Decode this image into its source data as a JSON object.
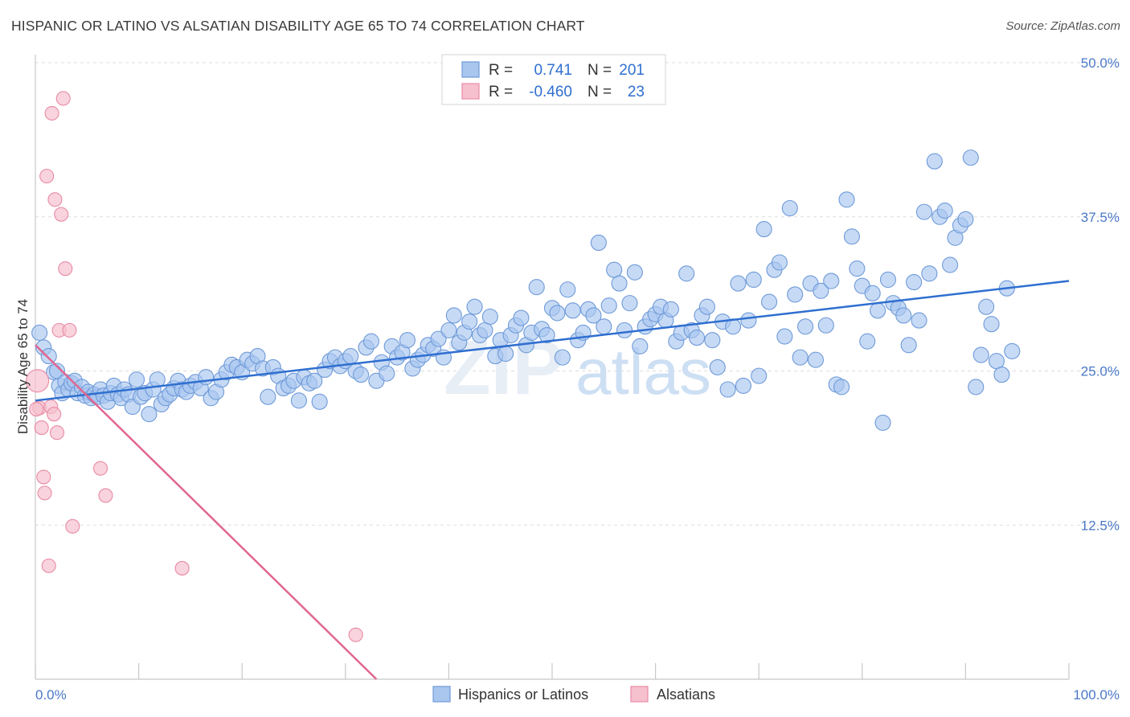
{
  "title": "HISPANIC OR LATINO VS ALSATIAN DISABILITY AGE 65 TO 74 CORRELATION CHART",
  "source": "Source: ZipAtlas.com",
  "watermark": {
    "zip": "ZIP",
    "atlas": "atlas"
  },
  "colors": {
    "blue_fill": "#a9c6ef",
    "blue_stroke": "#6e9ad8",
    "blue_line": "#2f6fd0",
    "pink_fill": "#f6c0cf",
    "pink_stroke": "#e88ba6",
    "pink_line": "#e06690",
    "tick_text": "#4a78c7",
    "grid": "#dddddd"
  },
  "legend": {
    "rows": [
      {
        "r_label": "R =",
        "r_value": "0.741",
        "n_label": "N =",
        "n_value": "201",
        "series": "blue"
      },
      {
        "r_label": "R =",
        "r_value": "-0.460",
        "n_label": "N =",
        "n_value": "23",
        "series": "pink"
      }
    ]
  },
  "chart_data": {
    "type": "scatter",
    "title": "HISPANIC OR LATINO VS ALSATIAN DISABILITY AGE 65 TO 74 CORRELATION CHART",
    "xlabel": "",
    "ylabel": "Disability Age 65 to 74",
    "xlim": [
      0,
      100
    ],
    "ylim": [
      0,
      50
    ],
    "x_tick_labels": [
      "0.0%",
      "100.0%"
    ],
    "y_ticks": [
      12.5,
      25.0,
      37.5,
      50.0
    ],
    "y_tick_labels": [
      "12.5%",
      "25.0%",
      "37.5%",
      "50.0%"
    ],
    "grid": true,
    "legend_position": "top-center",
    "series": [
      {
        "name": "Hispanics or Latinos",
        "color": "#a9c6ef",
        "trend": {
          "x": [
            0,
            100
          ],
          "y": [
            22.6,
            32.3
          ]
        },
        "points": [
          [
            0.4,
            28.1
          ],
          [
            0.8,
            26.9
          ],
          [
            1.3,
            26.2
          ],
          [
            1.8,
            24.9
          ],
          [
            2.1,
            25.0
          ],
          [
            2.3,
            23.8
          ],
          [
            2.6,
            23.2
          ],
          [
            2.9,
            24.1
          ],
          [
            3.2,
            23.5
          ],
          [
            3.5,
            24.0
          ],
          [
            3.8,
            24.2
          ],
          [
            4.1,
            23.2
          ],
          [
            4.5,
            23.7
          ],
          [
            4.8,
            23.0
          ],
          [
            5.1,
            23.3
          ],
          [
            5.4,
            22.8
          ],
          [
            5.7,
            23.1
          ],
          [
            6.0,
            22.9
          ],
          [
            6.3,
            23.5
          ],
          [
            6.6,
            23.0
          ],
          [
            7.0,
            22.5
          ],
          [
            7.3,
            23.2
          ],
          [
            7.6,
            23.8
          ],
          [
            8.0,
            23.1
          ],
          [
            8.3,
            22.8
          ],
          [
            8.6,
            23.5
          ],
          [
            9.0,
            23.1
          ],
          [
            9.4,
            22.1
          ],
          [
            9.8,
            24.3
          ],
          [
            10.2,
            22.9
          ],
          [
            10.6,
            23.2
          ],
          [
            11.0,
            21.5
          ],
          [
            11.4,
            23.5
          ],
          [
            11.8,
            24.3
          ],
          [
            12.2,
            22.3
          ],
          [
            12.6,
            22.8
          ],
          [
            13.0,
            23.1
          ],
          [
            13.4,
            23.6
          ],
          [
            13.8,
            24.2
          ],
          [
            14.2,
            23.5
          ],
          [
            14.6,
            23.3
          ],
          [
            15.0,
            23.8
          ],
          [
            15.5,
            24.1
          ],
          [
            16.0,
            23.6
          ],
          [
            16.5,
            24.5
          ],
          [
            17.0,
            22.8
          ],
          [
            17.5,
            23.3
          ],
          [
            18.0,
            24.3
          ],
          [
            18.5,
            24.9
          ],
          [
            19.0,
            25.5
          ],
          [
            19.5,
            25.3
          ],
          [
            20.0,
            24.9
          ],
          [
            20.5,
            25.9
          ],
          [
            21.0,
            25.6
          ],
          [
            21.5,
            26.2
          ],
          [
            22.0,
            25.2
          ],
          [
            22.5,
            22.9
          ],
          [
            23.0,
            25.3
          ],
          [
            23.5,
            24.6
          ],
          [
            24.0,
            23.6
          ],
          [
            24.5,
            23.8
          ],
          [
            25.0,
            24.2
          ],
          [
            25.5,
            22.6
          ],
          [
            26.0,
            24.5
          ],
          [
            26.5,
            24.0
          ],
          [
            27.0,
            24.2
          ],
          [
            27.5,
            22.5
          ],
          [
            28.0,
            25.1
          ],
          [
            28.5,
            25.8
          ],
          [
            29.0,
            26.1
          ],
          [
            29.5,
            25.4
          ],
          [
            30.0,
            25.8
          ],
          [
            30.5,
            26.2
          ],
          [
            31.0,
            25.0
          ],
          [
            31.5,
            24.7
          ],
          [
            32.0,
            26.9
          ],
          [
            32.5,
            27.4
          ],
          [
            33.0,
            24.2
          ],
          [
            33.5,
            25.7
          ],
          [
            34.0,
            24.8
          ],
          [
            34.5,
            27.0
          ],
          [
            35.0,
            26.1
          ],
          [
            35.5,
            26.5
          ],
          [
            36.0,
            27.5
          ],
          [
            36.5,
            25.2
          ],
          [
            37.0,
            25.9
          ],
          [
            37.5,
            26.3
          ],
          [
            38.0,
            27.1
          ],
          [
            38.5,
            26.8
          ],
          [
            39.0,
            27.6
          ],
          [
            39.5,
            26.1
          ],
          [
            40.0,
            28.3
          ],
          [
            40.5,
            29.5
          ],
          [
            41.0,
            27.3
          ],
          [
            41.5,
            28.1
          ],
          [
            42.0,
            29.0
          ],
          [
            42.5,
            30.2
          ],
          [
            43.0,
            27.9
          ],
          [
            43.5,
            28.3
          ],
          [
            44.0,
            29.4
          ],
          [
            44.5,
            26.2
          ],
          [
            45.0,
            27.5
          ],
          [
            45.5,
            26.4
          ],
          [
            46.0,
            27.9
          ],
          [
            46.5,
            28.7
          ],
          [
            47.0,
            29.3
          ],
          [
            47.5,
            27.1
          ],
          [
            48.0,
            28.1
          ],
          [
            48.5,
            31.8
          ],
          [
            49.0,
            28.4
          ],
          [
            49.5,
            27.9
          ],
          [
            50.0,
            30.1
          ],
          [
            50.5,
            29.7
          ],
          [
            51.0,
            26.1
          ],
          [
            51.5,
            31.6
          ],
          [
            52.0,
            29.9
          ],
          [
            52.5,
            27.5
          ],
          [
            53.0,
            28.1
          ],
          [
            53.5,
            30.0
          ],
          [
            54.0,
            29.5
          ],
          [
            54.5,
            35.4
          ],
          [
            55.0,
            28.6
          ],
          [
            55.5,
            30.3
          ],
          [
            56.0,
            33.2
          ],
          [
            56.5,
            32.1
          ],
          [
            57.0,
            28.3
          ],
          [
            57.5,
            30.5
          ],
          [
            58.0,
            33.0
          ],
          [
            58.5,
            27.0
          ],
          [
            59.0,
            28.6
          ],
          [
            59.5,
            29.2
          ],
          [
            60.0,
            29.6
          ],
          [
            60.5,
            30.2
          ],
          [
            61.0,
            29.1
          ],
          [
            61.5,
            30.0
          ],
          [
            62.0,
            27.4
          ],
          [
            62.5,
            28.1
          ],
          [
            63.0,
            32.9
          ],
          [
            63.5,
            28.3
          ],
          [
            64.0,
            27.7
          ],
          [
            64.5,
            29.5
          ],
          [
            65.0,
            30.2
          ],
          [
            65.5,
            27.5
          ],
          [
            66.0,
            25.3
          ],
          [
            66.5,
            29.0
          ],
          [
            67.0,
            23.5
          ],
          [
            67.5,
            28.6
          ],
          [
            68.0,
            32.1
          ],
          [
            68.5,
            23.8
          ],
          [
            69.0,
            29.1
          ],
          [
            69.5,
            32.4
          ],
          [
            70.0,
            24.6
          ],
          [
            70.5,
            36.5
          ],
          [
            71.0,
            30.6
          ],
          [
            71.5,
            33.2
          ],
          [
            72.0,
            33.8
          ],
          [
            72.5,
            27.8
          ],
          [
            73.0,
            38.2
          ],
          [
            73.5,
            31.2
          ],
          [
            74.0,
            26.1
          ],
          [
            74.5,
            28.6
          ],
          [
            75.0,
            32.1
          ],
          [
            75.5,
            25.9
          ],
          [
            76.0,
            31.5
          ],
          [
            76.5,
            28.7
          ],
          [
            77.0,
            32.3
          ],
          [
            77.5,
            23.9
          ],
          [
            78.0,
            23.7
          ],
          [
            78.5,
            38.9
          ],
          [
            79.0,
            35.9
          ],
          [
            79.5,
            33.3
          ],
          [
            80.0,
            31.9
          ],
          [
            80.5,
            27.4
          ],
          [
            81.0,
            31.3
          ],
          [
            81.5,
            29.9
          ],
          [
            82.0,
            20.8
          ],
          [
            82.5,
            32.4
          ],
          [
            83.0,
            30.5
          ],
          [
            83.5,
            30.1
          ],
          [
            84.0,
            29.5
          ],
          [
            84.5,
            27.1
          ],
          [
            85.0,
            32.2
          ],
          [
            85.5,
            29.1
          ],
          [
            86.0,
            37.9
          ],
          [
            86.5,
            32.9
          ],
          [
            87.0,
            42.0
          ],
          [
            87.5,
            37.5
          ],
          [
            88.0,
            38.0
          ],
          [
            88.5,
            33.6
          ],
          [
            89.0,
            35.8
          ],
          [
            89.5,
            36.8
          ],
          [
            90.0,
            37.3
          ],
          [
            90.5,
            42.3
          ],
          [
            91.0,
            23.7
          ],
          [
            91.5,
            26.3
          ],
          [
            92.0,
            30.2
          ],
          [
            92.5,
            28.8
          ],
          [
            93.0,
            25.8
          ],
          [
            93.5,
            24.7
          ],
          [
            94.0,
            31.7
          ],
          [
            94.5,
            26.6
          ]
        ]
      },
      {
        "name": "Alsatians",
        "color": "#f6c0cf",
        "trend": {
          "x": [
            0,
            33
          ],
          "y": [
            27.1,
            0
          ]
        },
        "points": [
          [
            0.2,
            24.2
          ],
          [
            0.4,
            22.0
          ],
          [
            0.6,
            20.4
          ],
          [
            0.8,
            16.4
          ],
          [
            0.9,
            15.1
          ],
          [
            1.1,
            40.8
          ],
          [
            1.3,
            9.2
          ],
          [
            1.5,
            22.1
          ],
          [
            1.6,
            45.9
          ],
          [
            1.8,
            21.5
          ],
          [
            1.9,
            38.9
          ],
          [
            2.1,
            20.0
          ],
          [
            2.3,
            28.3
          ],
          [
            2.5,
            37.7
          ],
          [
            2.7,
            47.1
          ],
          [
            2.9,
            33.3
          ],
          [
            3.3,
            28.3
          ],
          [
            3.6,
            12.4
          ],
          [
            6.3,
            17.1
          ],
          [
            6.8,
            14.9
          ],
          [
            14.2,
            9.0
          ],
          [
            31.0,
            3.6
          ],
          [
            0.1,
            21.9
          ]
        ]
      }
    ]
  }
}
